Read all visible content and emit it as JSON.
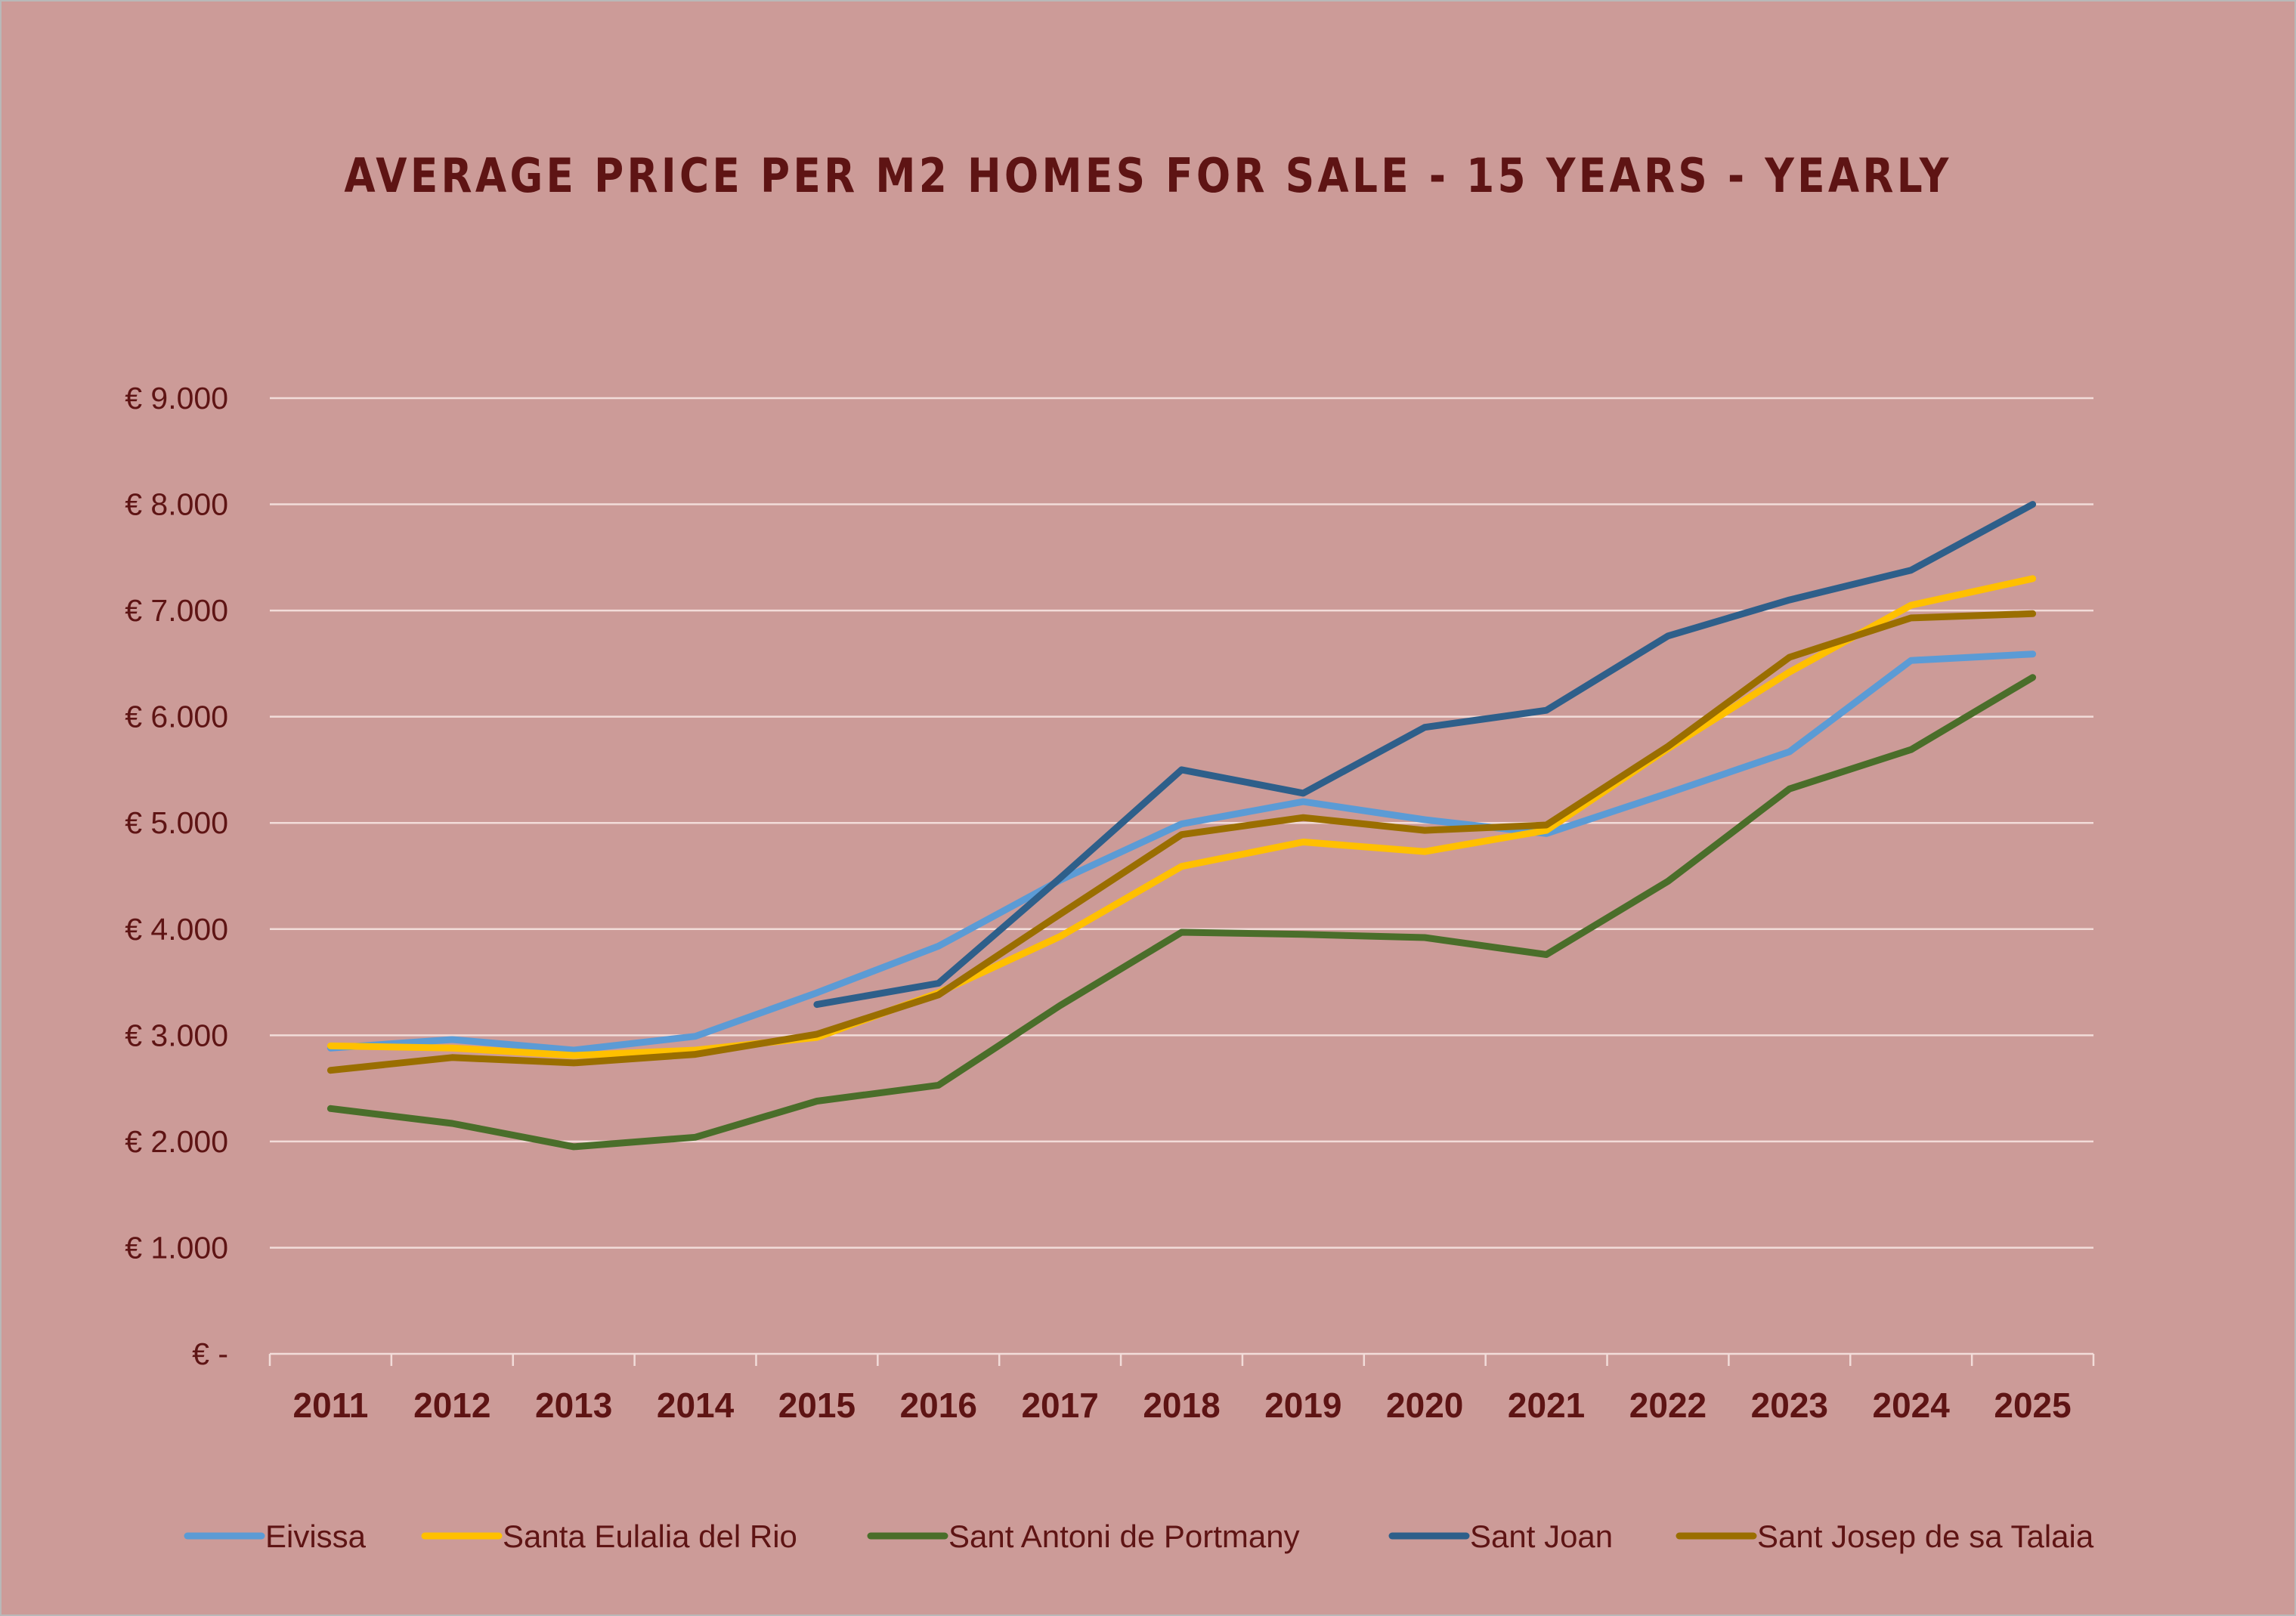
{
  "chart_data": {
    "type": "line",
    "title": "AVERAGE PRICE PER M2 HOMES FOR SALE - 15 YEARS - YEARLY",
    "xlabel": "",
    "ylabel": "",
    "ylim": [
      0,
      9000
    ],
    "y_ticks": [
      {
        "value": 0,
        "label": "€ -"
      },
      {
        "value": 1000,
        "label": "€ 1.000"
      },
      {
        "value": 2000,
        "label": "€ 2.000"
      },
      {
        "value": 3000,
        "label": "€ 3.000"
      },
      {
        "value": 4000,
        "label": "€ 4.000"
      },
      {
        "value": 5000,
        "label": "€ 5.000"
      },
      {
        "value": 6000,
        "label": "€ 6.000"
      },
      {
        "value": 7000,
        "label": "€ 7.000"
      },
      {
        "value": 8000,
        "label": "€ 8.000"
      },
      {
        "value": 9000,
        "label": "€ 9.000"
      }
    ],
    "grid": true,
    "legend_position": "bottom",
    "categories": [
      "2011",
      "2012",
      "2013",
      "2014",
      "2015",
      "2016",
      "2017",
      "2018",
      "2019",
      "2020",
      "2021",
      "2022",
      "2023",
      "2024",
      "2025"
    ],
    "series": [
      {
        "name": "Eivissa",
        "color": "#5b9bd5",
        "values": [
          2880,
          2960,
          2860,
          2990,
          3400,
          3840,
          4460,
          4990,
          5200,
          5030,
          4900,
          5280,
          5670,
          6530,
          6590
        ]
      },
      {
        "name": "Santa Eulalia del Rio",
        "color": "#ffc000",
        "values": [
          2900,
          2880,
          2810,
          2860,
          2980,
          3400,
          3930,
          4590,
          4820,
          4730,
          4930,
          5700,
          6420,
          7050,
          7300
        ]
      },
      {
        "name": "Sant Antoni de Portmany",
        "color": "#4a6e2a",
        "values": [
          2310,
          2170,
          1950,
          2040,
          2380,
          2530,
          3280,
          3970,
          3950,
          3920,
          3760,
          4450,
          5320,
          5690,
          6370
        ]
      },
      {
        "name": "Sant Joan",
        "color": "#2e5f8a",
        "values": [
          null,
          null,
          null,
          null,
          3290,
          3490,
          4480,
          5500,
          5280,
          5900,
          6060,
          6760,
          7100,
          7380,
          8000
        ]
      },
      {
        "name": "Sant Josep de sa Talaia",
        "color": "#9a6e00",
        "values": [
          2670,
          2790,
          2740,
          2820,
          3010,
          3380,
          4140,
          4890,
          5050,
          4930,
          4980,
          5720,
          6560,
          6930,
          6970
        ]
      }
    ]
  }
}
